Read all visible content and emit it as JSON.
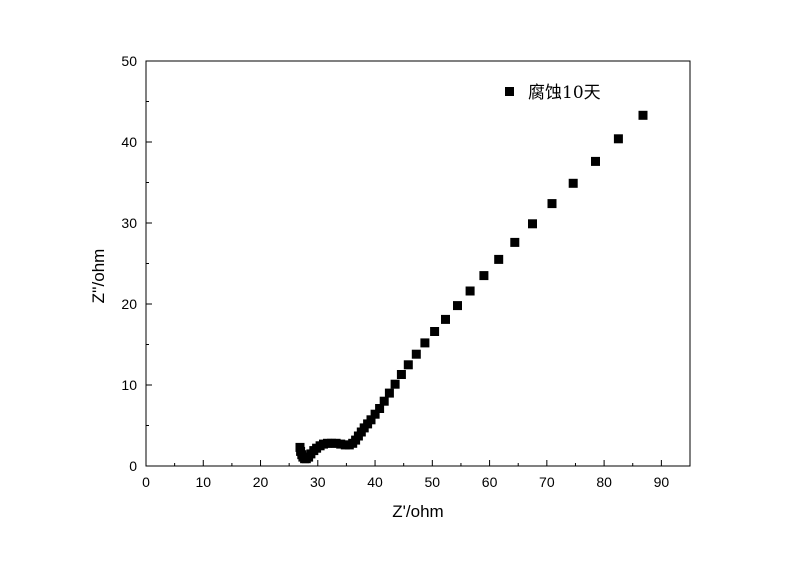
{
  "chart_data": {
    "type": "scatter",
    "title": "",
    "xlabel": "Z'/ohm",
    "ylabel": "Z''/ohm",
    "xlim": [
      0,
      95
    ],
    "ylim": [
      0,
      50
    ],
    "xticks": [
      "0",
      "10",
      "20",
      "30",
      "40",
      "50",
      "60",
      "70",
      "80",
      "90"
    ],
    "yticks": [
      "0",
      "10",
      "20",
      "30",
      "40",
      "50"
    ],
    "legend_position": "top-right",
    "grid": false,
    "marker": "square",
    "color": "#000000",
    "series": [
      {
        "name": "腐蚀10天",
        "x": [
          26.9,
          27.0,
          27.2,
          27.4,
          27.7,
          28.0,
          28.4,
          28.8,
          29.3,
          29.8,
          30.4,
          31.0,
          31.7,
          32.4,
          33.2,
          34.0,
          34.8,
          35.5,
          36.1,
          36.6,
          37.1,
          37.6,
          38.1,
          38.7,
          39.3,
          40.0,
          40.8,
          41.6,
          42.5,
          43.5,
          44.6,
          45.8,
          47.2,
          48.7,
          50.4,
          52.3,
          54.4,
          56.6,
          59.0,
          61.6,
          64.4,
          67.5,
          70.9,
          74.6,
          78.5,
          82.5,
          86.8
        ],
        "y": [
          2.3,
          1.8,
          1.4,
          1.1,
          0.9,
          0.9,
          1.1,
          1.5,
          1.9,
          2.2,
          2.5,
          2.7,
          2.8,
          2.8,
          2.8,
          2.7,
          2.6,
          2.6,
          2.8,
          3.2,
          3.7,
          4.2,
          4.7,
          5.2,
          5.7,
          6.4,
          7.1,
          8.0,
          9.0,
          10.1,
          11.3,
          12.5,
          13.8,
          15.2,
          16.6,
          18.1,
          19.8,
          21.6,
          23.5,
          25.5,
          27.6,
          29.9,
          32.4,
          34.9,
          37.6,
          40.4,
          43.3
        ]
      }
    ]
  }
}
